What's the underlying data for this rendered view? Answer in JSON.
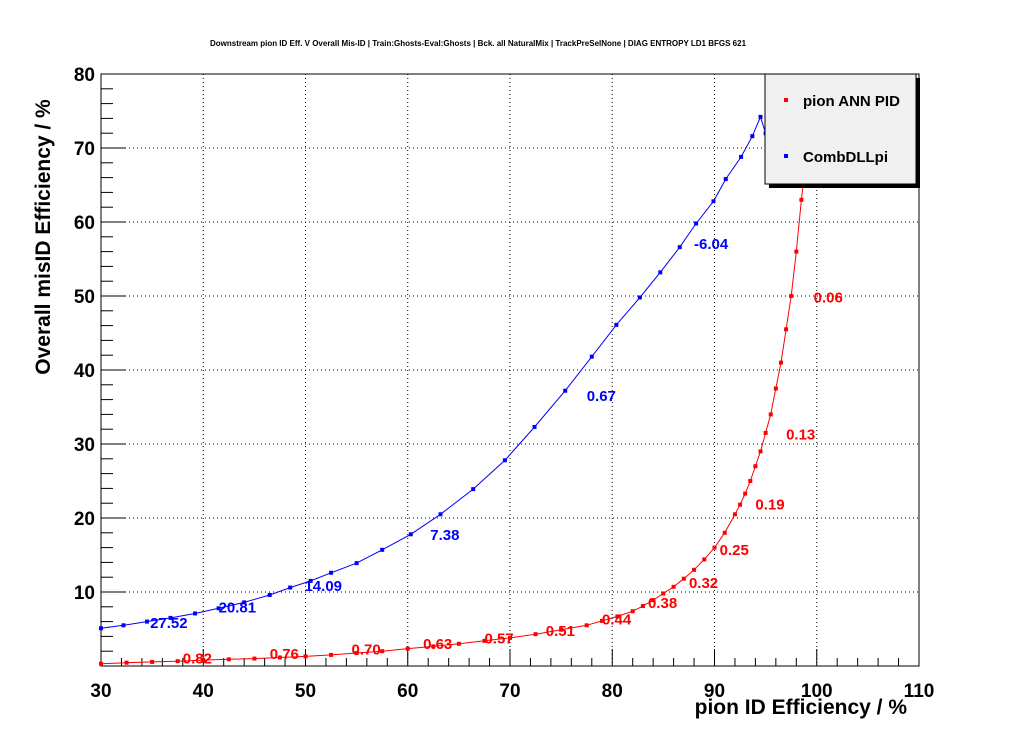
{
  "chart_data": {
    "type": "scatter",
    "title": "Downstream pion ID Eff. V Overall Mis-ID | Train:Ghosts-Eval:Ghosts | Bck. all NaturalMix | TrackPreSelNone | DIAG ENTROPY LD1 BFGS 621",
    "xlabel": "pion ID Efficiency / %",
    "ylabel": "Overall misID Efficiency / %",
    "xlim": [
      30,
      110
    ],
    "ylim": [
      0,
      80
    ],
    "xticks": [
      "30",
      "40",
      "50",
      "60",
      "70",
      "80",
      "90",
      "100",
      "110"
    ],
    "yticks": [
      "10",
      "20",
      "30",
      "40",
      "50",
      "60",
      "70",
      "80"
    ],
    "grid": true,
    "legend_position": "top-right",
    "series": [
      {
        "name": "pion ANN PID",
        "color": "#ff0000",
        "points": [
          [
            30,
            0.3
          ],
          [
            32.5,
            0.45
          ],
          [
            35,
            0.55
          ],
          [
            37.5,
            0.65
          ],
          [
            40,
            0.8
          ],
          [
            42.5,
            0.9
          ],
          [
            45,
            1.0
          ],
          [
            47.5,
            1.15
          ],
          [
            50,
            1.3
          ],
          [
            52.5,
            1.5
          ],
          [
            55,
            1.75
          ],
          [
            57.5,
            2.0
          ],
          [
            60,
            2.35
          ],
          [
            62.5,
            2.65
          ],
          [
            65,
            3.0
          ],
          [
            67.5,
            3.4
          ],
          [
            70,
            3.8
          ],
          [
            72.5,
            4.3
          ],
          [
            75,
            4.9
          ],
          [
            77.5,
            5.5
          ],
          [
            79,
            6.1
          ],
          [
            80.5,
            6.7
          ],
          [
            82,
            7.4
          ],
          [
            83,
            8.1
          ],
          [
            84,
            8.9
          ],
          [
            85,
            9.8
          ],
          [
            86,
            10.7
          ],
          [
            87,
            11.8
          ],
          [
            88,
            13.0
          ],
          [
            89,
            14.4
          ],
          [
            90,
            16.0
          ],
          [
            91,
            18.0
          ],
          [
            92,
            20.5
          ],
          [
            92.5,
            21.8
          ],
          [
            93,
            23.3
          ],
          [
            93.5,
            25.0
          ],
          [
            94,
            27.0
          ],
          [
            94.5,
            29.0
          ],
          [
            95,
            31.5
          ],
          [
            95.5,
            34.0
          ],
          [
            96,
            37.5
          ],
          [
            96.5,
            41.0
          ],
          [
            97,
            45.5
          ],
          [
            97.5,
            50.0
          ],
          [
            98,
            56.0
          ],
          [
            98.5,
            63.0
          ],
          [
            99,
            69.0
          ]
        ],
        "annotations": [
          {
            "text": "0.82",
            "x": 38,
            "y": 1.0
          },
          {
            "text": "0.76",
            "x": 46.5,
            "y": 1.6
          },
          {
            "text": "0.70",
            "x": 54.5,
            "y": 2.2
          },
          {
            "text": "0.63",
            "x": 61.5,
            "y": 3.0
          },
          {
            "text": "0.57",
            "x": 67.5,
            "y": 3.7
          },
          {
            "text": "0.51",
            "x": 73.5,
            "y": 4.7
          },
          {
            "text": "0.44",
            "x": 79,
            "y": 6.3
          },
          {
            "text": "0.38",
            "x": 83.5,
            "y": 8.5
          },
          {
            "text": "0.32",
            "x": 87.5,
            "y": 11.2
          },
          {
            "text": "0.25",
            "x": 90.5,
            "y": 15.7
          },
          {
            "text": "0.19",
            "x": 94,
            "y": 21.8
          },
          {
            "text": "0.13",
            "x": 97,
            "y": 31.3
          },
          {
            "text": "0.06",
            "x": 99.7,
            "y": 49.8
          }
        ]
      },
      {
        "name": "CombDLLpi",
        "color": "#0000ff",
        "points": [
          [
            30,
            5.1
          ],
          [
            32.2,
            5.5
          ],
          [
            34.5,
            6.0
          ],
          [
            36.8,
            6.5
          ],
          [
            39.2,
            7.1
          ],
          [
            41.5,
            7.8
          ],
          [
            44,
            8.6
          ],
          [
            46.5,
            9.6
          ],
          [
            48.5,
            10.6
          ],
          [
            50.5,
            11.5
          ],
          [
            52.5,
            12.6
          ],
          [
            55,
            13.9
          ],
          [
            57.5,
            15.7
          ],
          [
            60.3,
            17.8
          ],
          [
            63.2,
            20.5
          ],
          [
            66.4,
            23.9
          ],
          [
            69.5,
            27.8
          ],
          [
            72.4,
            32.3
          ],
          [
            75.4,
            37.2
          ],
          [
            78,
            41.8
          ],
          [
            80.4,
            46.1
          ],
          [
            82.7,
            49.8
          ],
          [
            84.7,
            53.2
          ],
          [
            86.6,
            56.6
          ],
          [
            88.2,
            59.8
          ],
          [
            89.9,
            62.8
          ],
          [
            91.1,
            65.8
          ],
          [
            92.6,
            68.8
          ],
          [
            93.7,
            71.6
          ],
          [
            94.5,
            74.2
          ],
          [
            95,
            72.0
          ],
          [
            95.8,
            74.9
          ]
        ],
        "annotations": [
          {
            "text": "27.52",
            "x": 34.8,
            "y": 5.8
          },
          {
            "text": "20.81",
            "x": 41.5,
            "y": 7.9
          },
          {
            "text": "14.09",
            "x": 49.9,
            "y": 10.8
          },
          {
            "text": "7.38",
            "x": 62.2,
            "y": 17.7
          },
          {
            "text": "0.67",
            "x": 77.5,
            "y": 36.5
          },
          {
            "text": "-6.04",
            "x": 88,
            "y": 57.0
          }
        ]
      }
    ]
  }
}
